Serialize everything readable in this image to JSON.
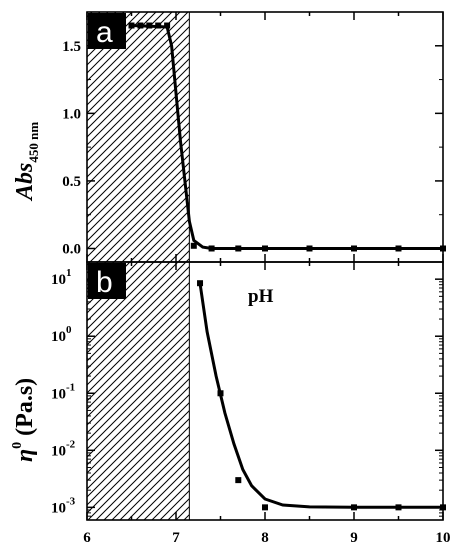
{
  "chart_data": [
    {
      "panel": "a",
      "type": "line",
      "ylabel": "Abs",
      "ylabel_sub": "450 nm",
      "xlim": [
        6,
        10
      ],
      "ylim": [
        -0.1,
        1.75
      ],
      "y_scale": "linear",
      "yticks": [
        0.0,
        0.5,
        1.0,
        1.5
      ],
      "ytick_labels": [
        "0.0",
        "0.5",
        "1.0",
        "1.5"
      ],
      "shaded_region": [
        6,
        7.15
      ],
      "markers": {
        "x": [
          6.5,
          6.6,
          6.7,
          6.8,
          6.9,
          7.2,
          7.4,
          7.7,
          8.0,
          8.5,
          9.0,
          9.5,
          10.0
        ],
        "y": [
          1.65,
          1.65,
          1.65,
          1.65,
          1.65,
          0.02,
          0.0,
          0.0,
          0.0,
          0.0,
          0.0,
          0.0,
          0.0
        ]
      },
      "fit": {
        "x": [
          6.5,
          6.9,
          6.95,
          7.0,
          7.05,
          7.1,
          7.15,
          7.2,
          7.3,
          7.4,
          7.7,
          8.0,
          9.0,
          10.0
        ],
        "y": [
          1.65,
          1.64,
          1.5,
          1.15,
          0.8,
          0.5,
          0.2,
          0.06,
          0.01,
          0.0,
          0.0,
          0.0,
          0.0,
          0.0
        ]
      }
    },
    {
      "panel": "b",
      "type": "line",
      "ylabel": "η",
      "ylabel_sup": "0",
      "ylabel_unit": "(Pa.s)",
      "xlabel": "pH",
      "xlim": [
        6,
        10
      ],
      "ylim": [
        0.0006,
        20
      ],
      "y_scale": "log",
      "xticks": [
        6,
        7,
        8,
        9,
        10
      ],
      "xtick_labels": [
        "6",
        "7",
        "8",
        "9",
        "10"
      ],
      "yticks": [
        0.001,
        0.01,
        0.1,
        1,
        10
      ],
      "ytick_labels": [
        {
          "base": "10",
          "exp": "-3"
        },
        {
          "base": "10",
          "exp": "-2"
        },
        {
          "base": "10",
          "exp": "-1"
        },
        {
          "base": "10",
          "exp": "0"
        },
        {
          "base": "10",
          "exp": "1"
        }
      ],
      "shaded_region": [
        6,
        7.15
      ],
      "markers": {
        "x": [
          7.27,
          7.5,
          7.7,
          8.0,
          9.0,
          9.5,
          10.0
        ],
        "y": [
          8.5,
          0.1,
          0.003,
          0.001,
          0.001,
          0.001,
          0.001
        ]
      },
      "fit": {
        "x": [
          7.27,
          7.35,
          7.45,
          7.55,
          7.65,
          7.75,
          7.85,
          8.0,
          8.2,
          8.5,
          9.0,
          9.5,
          10.0
        ],
        "y": [
          8.5,
          1.2,
          0.2,
          0.045,
          0.013,
          0.0046,
          0.0024,
          0.0014,
          0.0011,
          0.00102,
          0.001,
          0.001,
          0.001
        ]
      }
    }
  ]
}
